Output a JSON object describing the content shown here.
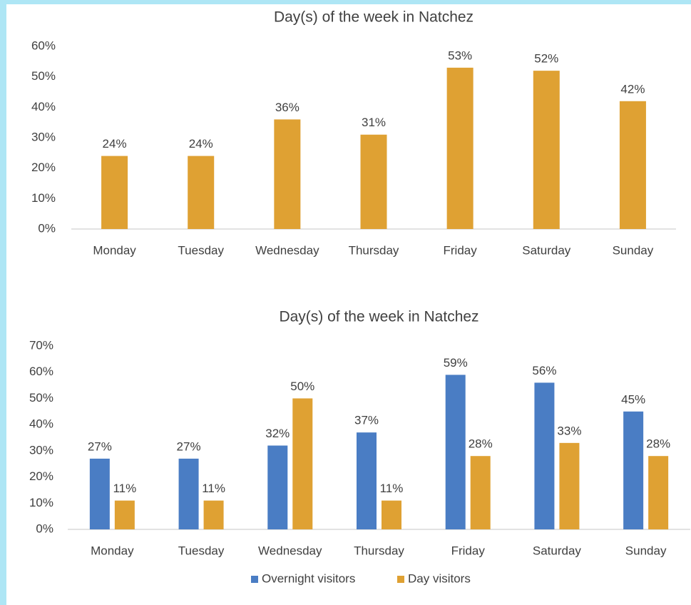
{
  "chart_data": [
    {
      "type": "bar",
      "title": "Day(s) of the week in Natchez",
      "categories": [
        "Monday",
        "Tuesday",
        "Wednesday",
        "Thursday",
        "Friday",
        "Saturday",
        "Sunday"
      ],
      "values": [
        24,
        24,
        36,
        31,
        53,
        52,
        42
      ],
      "value_labels": [
        "24%",
        "24%",
        "36%",
        "31%",
        "53%",
        "52%",
        "42%"
      ],
      "color": "#dfa133",
      "ylim": [
        0,
        60
      ],
      "yticks": [
        {
          "value": 0,
          "label": "0%"
        },
        {
          "value": 10,
          "label": "10%"
        },
        {
          "value": 20,
          "label": "20%"
        },
        {
          "value": 30,
          "label": "30%"
        },
        {
          "value": 40,
          "label": "40%"
        },
        {
          "value": 50,
          "label": "50%"
        },
        {
          "value": 60,
          "label": "60%"
        }
      ],
      "grid": false
    },
    {
      "type": "grouped_bar",
      "title": "Day(s) of the week in Natchez",
      "categories": [
        "Monday",
        "Tuesday",
        "Wednesday",
        "Thursday",
        "Friday",
        "Saturday",
        "Sunday"
      ],
      "series": [
        {
          "name": "Overnight visitors",
          "color": "#4a7dc4",
          "values": [
            27,
            27,
            32,
            37,
            59,
            56,
            45
          ],
          "value_labels": [
            "27%",
            "27%",
            "32%",
            "37%",
            "59%",
            "56%",
            "45%"
          ]
        },
        {
          "name": "Day visitors",
          "color": "#dfa133",
          "values": [
            11,
            11,
            50,
            11,
            28,
            33,
            28
          ],
          "value_labels": [
            "11%",
            "11%",
            "50%",
            "11%",
            "28%",
            "33%",
            "28%"
          ]
        }
      ],
      "ylim": [
        0,
        70
      ],
      "yticks": [
        {
          "value": 0,
          "label": "0%"
        },
        {
          "value": 10,
          "label": "10%"
        },
        {
          "value": 20,
          "label": "20%"
        },
        {
          "value": 30,
          "label": "30%"
        },
        {
          "value": 40,
          "label": "40%"
        },
        {
          "value": 50,
          "label": "50%"
        },
        {
          "value": 60,
          "label": "60%"
        },
        {
          "value": 70,
          "label": "70%"
        }
      ],
      "grid": false,
      "legend": "bottom"
    }
  ]
}
